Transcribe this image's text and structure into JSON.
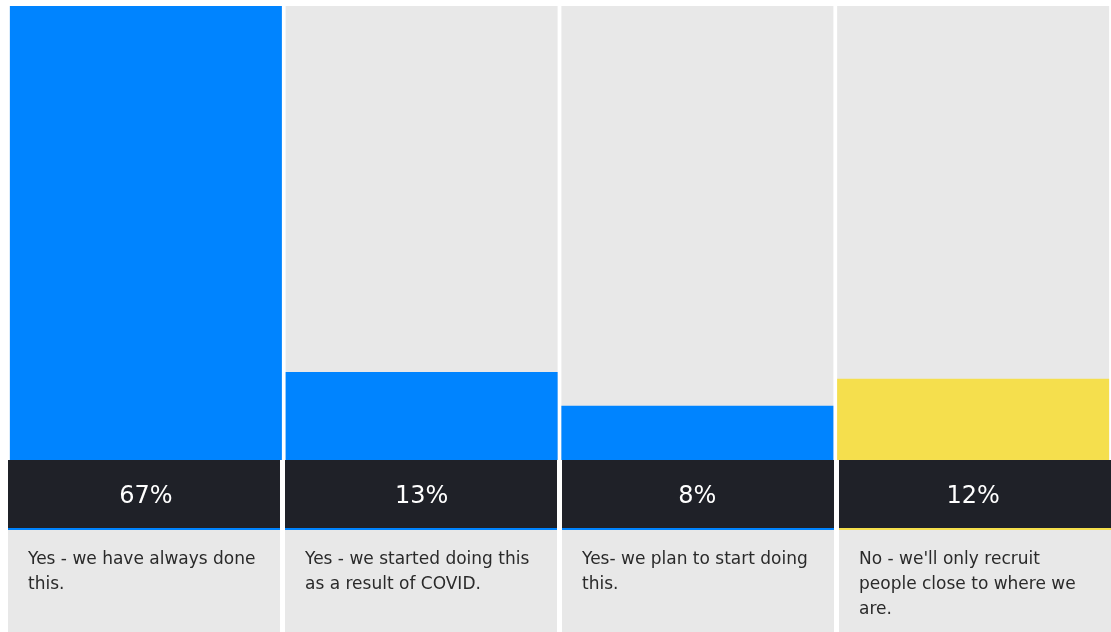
{
  "chart_data": {
    "type": "bar",
    "categories": [
      "Yes - we have always done this.",
      "Yes - we started doing this as a result of COVID.",
      "Yes- we plan to start doing this.",
      "No - we'll only recruit people close to where we are."
    ],
    "values": [
      67,
      13,
      8,
      12
    ],
    "colors": [
      "#0084ff",
      "#0084ff",
      "#0084ff",
      "#f5df4d"
    ],
    "value_labels": [
      "67%",
      "13%",
      "8%",
      "12%"
    ],
    "ylim": [
      0,
      67
    ],
    "tick_labels": false,
    "grid": false
  }
}
